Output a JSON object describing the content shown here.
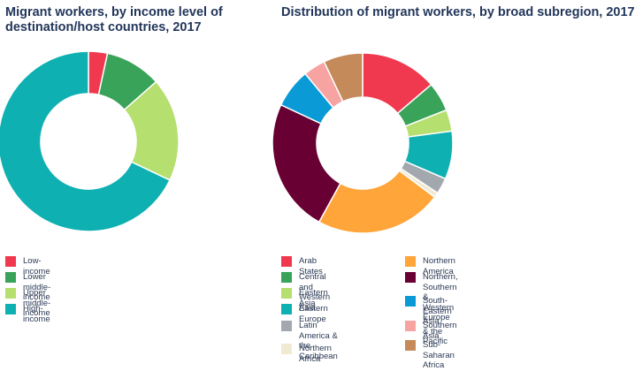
{
  "chart_data": [
    {
      "type": "pie",
      "title": "Migrant workers, by income level of destination/host countries, 2017",
      "categories": [
        "Low-income",
        "Lower middle-income",
        "Upper middle-income",
        "High-income"
      ],
      "values": [
        3.4,
        10.1,
        18.6,
        67.9
      ],
      "colors": [
        "#f0394f",
        "#3aa35a",
        "#b5df6e",
        "#0fb0b2"
      ],
      "donut": true,
      "legend_position": "bottom"
    },
    {
      "type": "pie",
      "title": "Distribution of migrant workers, by broad subregion, 2017",
      "categories": [
        "Arab States",
        "Central and Western Asia",
        "Eastern Asia",
        "Eastern Europe",
        "Latin America & the Caribbean",
        "Northern Africa",
        "Northern America",
        "Northern, Southern & Western Europe",
        "South-Eastern Asia & the Pacific",
        "Southern Asia",
        "Sub-Saharan Africa"
      ],
      "legend_labels": [
        "Arab States",
        "Central and Western Asia",
        "Eastern Asia",
        "Eastern Europe",
        "Latin America &\nthe Caribbean",
        "Northern Africa",
        "Northern America",
        "Northern, Southern\n& Western Europe",
        "South-Eastern Asia\n& the Pacific",
        "Southern Asia",
        "Sub-Saharan Africa"
      ],
      "values": [
        13.9,
        5.3,
        3.9,
        8.7,
        2.9,
        0.9,
        23.0,
        24.2,
        7.1,
        4.0,
        7.1
      ],
      "colors": [
        "#f0394f",
        "#3aa35a",
        "#b5df6e",
        "#0fb0b2",
        "#a3a8ae",
        "#f1ead2",
        "#ffa53a",
        "#690033",
        "#0a9ad6",
        "#f6a3a1",
        "#c48a5a"
      ],
      "donut": true,
      "legend_position": "bottom"
    }
  ]
}
